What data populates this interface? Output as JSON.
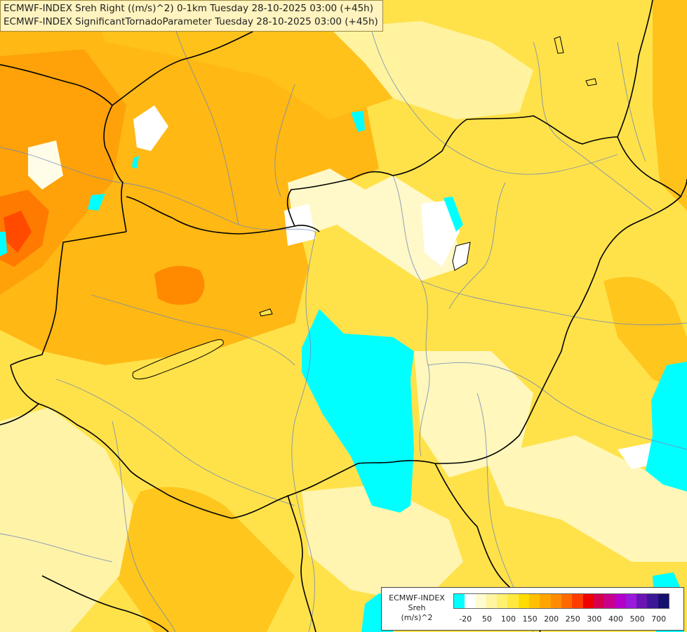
{
  "title_lines": [
    "ECMWF-INDEX Sreh Right ((m/s)^2) 0-1km Tuesday 28-10-2025 03:00 (+45h)",
    "ECMWF-INDEX SignificantTornadoParameter Tuesday 28-10-2025 03:00 (+45h)"
  ],
  "legend": {
    "line1": "ECMWF-INDEX",
    "line2": "Sreh",
    "line3": "(m/s)^2",
    "colors": [
      "#00ffff",
      "#ffffff",
      "#fffbd0",
      "#fff4a0",
      "#fff070",
      "#ffe940",
      "#ffdc00",
      "#ffc000",
      "#ffa500",
      "#ff8c00",
      "#ff6a00",
      "#ff3c00",
      "#ee0000",
      "#d4004c",
      "#c8008c",
      "#b400c8",
      "#9a1adc",
      "#6a14b4",
      "#3c1896",
      "#16106e"
    ],
    "ticks": [
      "-20",
      "50",
      "100",
      "150",
      "200",
      "250",
      "300",
      "400",
      "500",
      "700"
    ]
  }
}
